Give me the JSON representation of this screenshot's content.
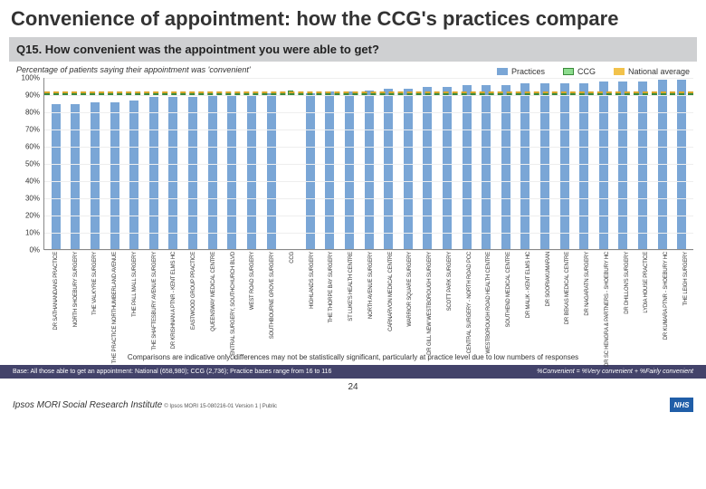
{
  "title": "Convenience of appointment: how the CCG's practices compare",
  "question": "Q15. How convenient was the appointment you were able to get?",
  "subtitle": "Percentage of patients saying their appointment was 'convenient'",
  "legend": {
    "practices": {
      "label": "Practices",
      "swatch": "#7aa6d6"
    },
    "ccg": {
      "label": "CCG",
      "swatch": "#8ddc8e",
      "border": "#3a8a3a"
    },
    "national": {
      "label": "National average",
      "swatch": "#f2c24b"
    }
  },
  "chart": {
    "type": "bar",
    "ylim": [
      0,
      100
    ],
    "ytick_step": 10,
    "ytick_suffix": "%",
    "grid_color": "#eeeeee",
    "bar_color": "#7aa6d6",
    "ccg_value": 91,
    "national_value": 92,
    "ccg_line_color": "#3a8a3a",
    "national_line_color": "#d9a52a",
    "categories": [
      "DR SATHANANDANS PRACTICE",
      "NORTH SHOEBURY SURGERY",
      "THE VALKYRIE SURGERY",
      "THE PRACTICE NORTHUMBERLAND AVENUE",
      "THE PALL MALL SURGERY",
      "THE SHAFTESBURY AVENUE SURGERY",
      "DR KRISHNAN A PTNR - KENT ELMS HC",
      "EASTWOOD GROUP PRACTICE",
      "QUEENSWAY MEDICAL CENTRE",
      "CENTRAL SURGERY, SOUTHCHURCH BLVD",
      "WEST ROAD SURGERY",
      "SOUTHBOURNE GROVE SURGERY",
      "CCG",
      "HIGHLANDS SURGERY",
      "THE THORPE BAY SURGERY",
      "ST LUKE'S HEALTH CENTRE",
      "NORTH AVENUE SURGERY",
      "CARNARVON MEDICAL CENTRE",
      "WARRIOR SQUARE SURGERY",
      "DR GILL NEW WESTBOROUGH SURGERY",
      "SCOTT PARK SURGERY",
      "CENTRAL SURGERY - NORTH ROAD PCC",
      "WESTBOROUGH ROAD HEALTH CENTRE",
      "SOUTHEND MEDICAL CENTRE",
      "DR MALIK - KENT ELMS HC",
      "DR SOORIAKUMARAN",
      "DR BEKAS MEDICAL CENTRE",
      "DR NAGARATN SURGERY",
      "DR SC HENGRA & PARTNERS - SHOEBURY HC",
      "DR DHILLON'S SURGERY",
      "LYDIA HOUSE PRACTICE",
      "DR KUMARA PTNR - SHOEBURY HC",
      "THE LEIGH SURGERY"
    ],
    "values": [
      85,
      85,
      86,
      86,
      87,
      89,
      89,
      89,
      90,
      90,
      90,
      91,
      91,
      91,
      92,
      92,
      93,
      94,
      94,
      95,
      95,
      96,
      96,
      96,
      97,
      97,
      97,
      97,
      98,
      98,
      98,
      99,
      99
    ],
    "marker_index": 12
  },
  "comparison_note": "Comparisons are indicative only: differences may not be statistically significant, particularly at practice level due to low numbers of responses",
  "footer": {
    "base": "Base: All those able to get an appointment: National (658,980); CCG (2,736); Practice bases range from 16 to 116",
    "right": "%Convenient = %Very convenient + %Fairly convenient"
  },
  "page_number": "24",
  "bottom": {
    "ipsos": "Ipsos MORI",
    "ipsos_sub": "Social Research Institute",
    "copyright": "© Ipsos MORI    15-080216-01 Version 1 | Public",
    "nhs": "NHS"
  }
}
